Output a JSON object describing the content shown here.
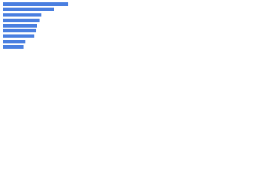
{
  "chart_data": {
    "type": "bar",
    "orientation": "horizontal",
    "categories": [
      null,
      null,
      null,
      null,
      null,
      null,
      null,
      null,
      null
    ],
    "values": [
      88,
      69,
      52,
      49,
      46,
      44,
      42,
      30,
      27
    ],
    "color": "#4a7fe0",
    "xlim": [
      0,
      100
    ]
  }
}
